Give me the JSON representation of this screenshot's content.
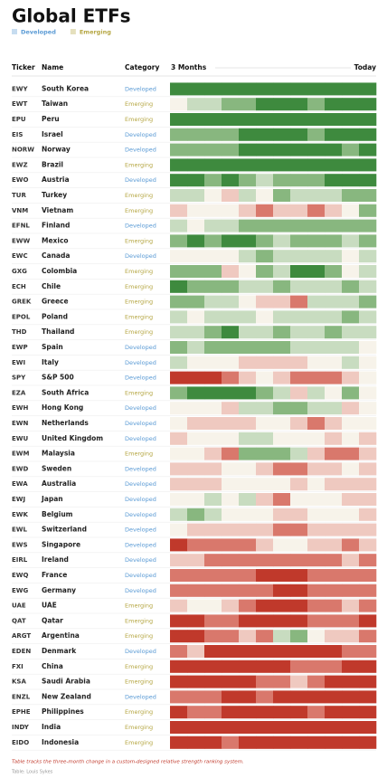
{
  "title": "Global ETFs",
  "legend": [
    {
      "label": "Developed",
      "color": "#5b9bd5"
    },
    {
      "label": "Emerging",
      "color": "#b5a642"
    }
  ],
  "columns": [
    "Ticker",
    "Name",
    "Category",
    "3 Months",
    "Today"
  ],
  "heat_range": [
    -3,
    3
  ],
  "heat_colors": [
    "#c0392b",
    "#d9786c",
    "#efc9c0",
    "#f7f3ea",
    "#c8dcc0",
    "#88b77f",
    "#3e8a3e"
  ],
  "rows": [
    {
      "ticker": "EWY",
      "name": "South Korea",
      "category": "Developed",
      "values": [
        3,
        3,
        3,
        3,
        3,
        3,
        3,
        3,
        3,
        3,
        3,
        3
      ]
    },
    {
      "ticker": "EWT",
      "name": "Taiwan",
      "category": "Emerging",
      "values": [
        0,
        1,
        1,
        2,
        2,
        3,
        3,
        3,
        2,
        3,
        3,
        3
      ]
    },
    {
      "ticker": "EPU",
      "name": "Peru",
      "category": "Emerging",
      "values": [
        3,
        3,
        3,
        3,
        3,
        3,
        3,
        3,
        3,
        3,
        3,
        3
      ]
    },
    {
      "ticker": "EIS",
      "name": "Israel",
      "category": "Developed",
      "values": [
        2,
        2,
        2,
        2,
        3,
        3,
        3,
        3,
        2,
        3,
        3,
        3
      ]
    },
    {
      "ticker": "NORW",
      "name": "Norway",
      "category": "Developed",
      "values": [
        2,
        2,
        2,
        2,
        3,
        3,
        3,
        3,
        3,
        3,
        2,
        3
      ]
    },
    {
      "ticker": "EWZ",
      "name": "Brazil",
      "category": "Emerging",
      "values": [
        3,
        3,
        3,
        3,
        3,
        3,
        3,
        3,
        3,
        3,
        3,
        3
      ]
    },
    {
      "ticker": "EWO",
      "name": "Austria",
      "category": "Developed",
      "values": [
        3,
        3,
        2,
        3,
        2,
        1,
        2,
        2,
        2,
        3,
        3,
        3
      ]
    },
    {
      "ticker": "TUR",
      "name": "Turkey",
      "category": "Emerging",
      "values": [
        1,
        1,
        0,
        -1,
        1,
        0,
        2,
        1,
        1,
        1,
        2,
        2
      ]
    },
    {
      "ticker": "VNM",
      "name": "Vietnam",
      "category": "Emerging",
      "values": [
        -1,
        0,
        0,
        0,
        -1,
        -2,
        -1,
        -1,
        -2,
        -1,
        0,
        2
      ]
    },
    {
      "ticker": "EFNL",
      "name": "Finland",
      "category": "Developed",
      "values": [
        1,
        0,
        1,
        1,
        2,
        2,
        2,
        2,
        2,
        2,
        2,
        2
      ]
    },
    {
      "ticker": "EWW",
      "name": "Mexico",
      "category": "Emerging",
      "values": [
        2,
        3,
        2,
        3,
        3,
        2,
        1,
        2,
        2,
        2,
        1,
        2
      ]
    },
    {
      "ticker": "EWC",
      "name": "Canada",
      "category": "Developed",
      "values": [
        0,
        0,
        0,
        0,
        1,
        2,
        1,
        1,
        1,
        1,
        0,
        1
      ]
    },
    {
      "ticker": "GXG",
      "name": "Colombia",
      "category": "Emerging",
      "values": [
        2,
        2,
        2,
        -1,
        0,
        2,
        1,
        3,
        3,
        2,
        0,
        1
      ]
    },
    {
      "ticker": "ECH",
      "name": "Chile",
      "category": "Emerging",
      "values": [
        3,
        2,
        2,
        2,
        1,
        1,
        2,
        1,
        1,
        1,
        2,
        1
      ]
    },
    {
      "ticker": "GREK",
      "name": "Greece",
      "category": "Emerging",
      "values": [
        2,
        2,
        1,
        1,
        0,
        -1,
        -1,
        -2,
        1,
        1,
        1,
        2
      ]
    },
    {
      "ticker": "EPOL",
      "name": "Poland",
      "category": "Emerging",
      "values": [
        1,
        0,
        1,
        1,
        1,
        0,
        1,
        1,
        1,
        1,
        2,
        1
      ]
    },
    {
      "ticker": "THD",
      "name": "Thailand",
      "category": "Emerging",
      "values": [
        1,
        1,
        2,
        3,
        1,
        1,
        2,
        1,
        1,
        2,
        1,
        1
      ]
    },
    {
      "ticker": "EWP",
      "name": "Spain",
      "category": "Developed",
      "values": [
        2,
        1,
        2,
        2,
        2,
        2,
        2,
        1,
        1,
        1,
        1,
        0
      ]
    },
    {
      "ticker": "EWI",
      "name": "Italy",
      "category": "Developed",
      "values": [
        1,
        0,
        0,
        0,
        -1,
        -1,
        -1,
        -1,
        0,
        0,
        1,
        0
      ]
    },
    {
      "ticker": "SPY",
      "name": "S&P 500",
      "category": "Developed",
      "values": [
        -3,
        -3,
        -3,
        -2,
        -1,
        0,
        -1,
        -2,
        -2,
        -2,
        -1,
        0
      ]
    },
    {
      "ticker": "EZA",
      "name": "South Africa",
      "category": "Emerging",
      "values": [
        2,
        3,
        3,
        3,
        3,
        2,
        1,
        -1,
        1,
        0,
        2,
        0
      ]
    },
    {
      "ticker": "EWH",
      "name": "Hong Kong",
      "category": "Developed",
      "values": [
        0,
        0,
        0,
        -1,
        1,
        1,
        2,
        2,
        1,
        1,
        -1,
        0
      ]
    },
    {
      "ticker": "EWN",
      "name": "Netherlands",
      "category": "Developed",
      "values": [
        0,
        -1,
        -1,
        -1,
        -1,
        0,
        0,
        -1,
        -2,
        -1,
        0,
        0
      ]
    },
    {
      "ticker": "EWU",
      "name": "United Kingdom",
      "category": "Developed",
      "values": [
        -1,
        0,
        0,
        0,
        1,
        1,
        0,
        0,
        0,
        -1,
        0,
        -1
      ]
    },
    {
      "ticker": "EWM",
      "name": "Malaysia",
      "category": "Emerging",
      "values": [
        0,
        0,
        -1,
        -2,
        2,
        2,
        2,
        1,
        -1,
        -2,
        -2,
        -1
      ]
    },
    {
      "ticker": "EWD",
      "name": "Sweden",
      "category": "Developed",
      "values": [
        -1,
        -1,
        -1,
        0,
        0,
        -1,
        -2,
        -2,
        -1,
        -1,
        0,
        -1
      ]
    },
    {
      "ticker": "EWA",
      "name": "Australia",
      "category": "Developed",
      "values": [
        -1,
        -1,
        -1,
        0,
        0,
        0,
        0,
        -1,
        0,
        -1,
        -1,
        -1
      ]
    },
    {
      "ticker": "EWJ",
      "name": "Japan",
      "category": "Developed",
      "values": [
        0,
        0,
        1,
        0,
        1,
        -1,
        -2,
        0,
        0,
        0,
        -1,
        -1
      ]
    },
    {
      "ticker": "EWK",
      "name": "Belgium",
      "category": "Developed",
      "values": [
        1,
        2,
        1,
        0,
        0,
        0,
        -1,
        -1,
        0,
        0,
        0,
        -1
      ]
    },
    {
      "ticker": "EWL",
      "name": "Switzerland",
      "category": "Developed",
      "values": [
        0,
        -1,
        -1,
        -1,
        -1,
        -1,
        -2,
        -2,
        -1,
        -1,
        -1,
        -1
      ]
    },
    {
      "ticker": "EWS",
      "name": "Singapore",
      "category": "Developed",
      "values": [
        -3,
        -2,
        -2,
        -2,
        -2,
        -1,
        0,
        0,
        -1,
        -1,
        -2,
        -1
      ]
    },
    {
      "ticker": "EIRL",
      "name": "Ireland",
      "category": "Developed",
      "values": [
        -1,
        -1,
        -2,
        -2,
        -2,
        -2,
        -2,
        -2,
        -2,
        -2,
        -1,
        -2
      ]
    },
    {
      "ticker": "EWQ",
      "name": "France",
      "category": "Developed",
      "values": [
        -2,
        -2,
        -2,
        -2,
        -2,
        -3,
        -3,
        -3,
        -2,
        -2,
        -2,
        -2
      ]
    },
    {
      "ticker": "EWG",
      "name": "Germany",
      "category": "Developed",
      "values": [
        -2,
        -2,
        -2,
        -2,
        -2,
        -2,
        -3,
        -3,
        -2,
        -2,
        -2,
        -2
      ]
    },
    {
      "ticker": "UAE",
      "name": "UAE",
      "category": "Emerging",
      "values": [
        -1,
        0,
        0,
        -1,
        -2,
        -3,
        -3,
        -3,
        -2,
        -2,
        -1,
        -2
      ]
    },
    {
      "ticker": "QAT",
      "name": "Qatar",
      "category": "Emerging",
      "values": [
        -3,
        -3,
        -2,
        -2,
        -3,
        -3,
        -3,
        -3,
        -2,
        -2,
        -2,
        -3
      ]
    },
    {
      "ticker": "ARGT",
      "name": "Argentina",
      "category": "Emerging",
      "values": [
        -3,
        -3,
        -2,
        -2,
        -1,
        -2,
        1,
        2,
        0,
        -1,
        -1,
        -2
      ]
    },
    {
      "ticker": "EDEN",
      "name": "Denmark",
      "category": "Developed",
      "values": [
        -2,
        -1,
        -3,
        -3,
        -3,
        -3,
        -3,
        -3,
        -3,
        -3,
        -2,
        -2
      ]
    },
    {
      "ticker": "FXI",
      "name": "China",
      "category": "Emerging",
      "values": [
        -3,
        -3,
        -3,
        -3,
        -3,
        -3,
        -3,
        -2,
        -2,
        -2,
        -3,
        -3
      ]
    },
    {
      "ticker": "KSA",
      "name": "Saudi Arabia",
      "category": "Emerging",
      "values": [
        -3,
        -3,
        -3,
        -3,
        -3,
        -2,
        -2,
        -1,
        -2,
        -3,
        -3,
        -3
      ]
    },
    {
      "ticker": "ENZL",
      "name": "New Zealand",
      "category": "Developed",
      "values": [
        -2,
        -2,
        -2,
        -3,
        -3,
        -2,
        -3,
        -3,
        -3,
        -3,
        -3,
        -3
      ]
    },
    {
      "ticker": "EPHE",
      "name": "Philippines",
      "category": "Emerging",
      "values": [
        -3,
        -2,
        -2,
        -3,
        -3,
        -3,
        -3,
        -3,
        -2,
        -3,
        -3,
        -3
      ]
    },
    {
      "ticker": "INDY",
      "name": "India",
      "category": "Emerging",
      "values": [
        -3,
        -3,
        -3,
        -3,
        -3,
        -3,
        -3,
        -3,
        -3,
        -3,
        -3,
        -3
      ]
    },
    {
      "ticker": "EIDO",
      "name": "Indonesia",
      "category": "Emerging",
      "values": [
        -3,
        -3,
        -3,
        -2,
        -3,
        -3,
        -3,
        -3,
        -3,
        -3,
        -3,
        -3
      ]
    }
  ],
  "note": "Table tracks the three-month change in a custom-designed relative strength ranking system.",
  "credit": "Table: Louis Sykes"
}
